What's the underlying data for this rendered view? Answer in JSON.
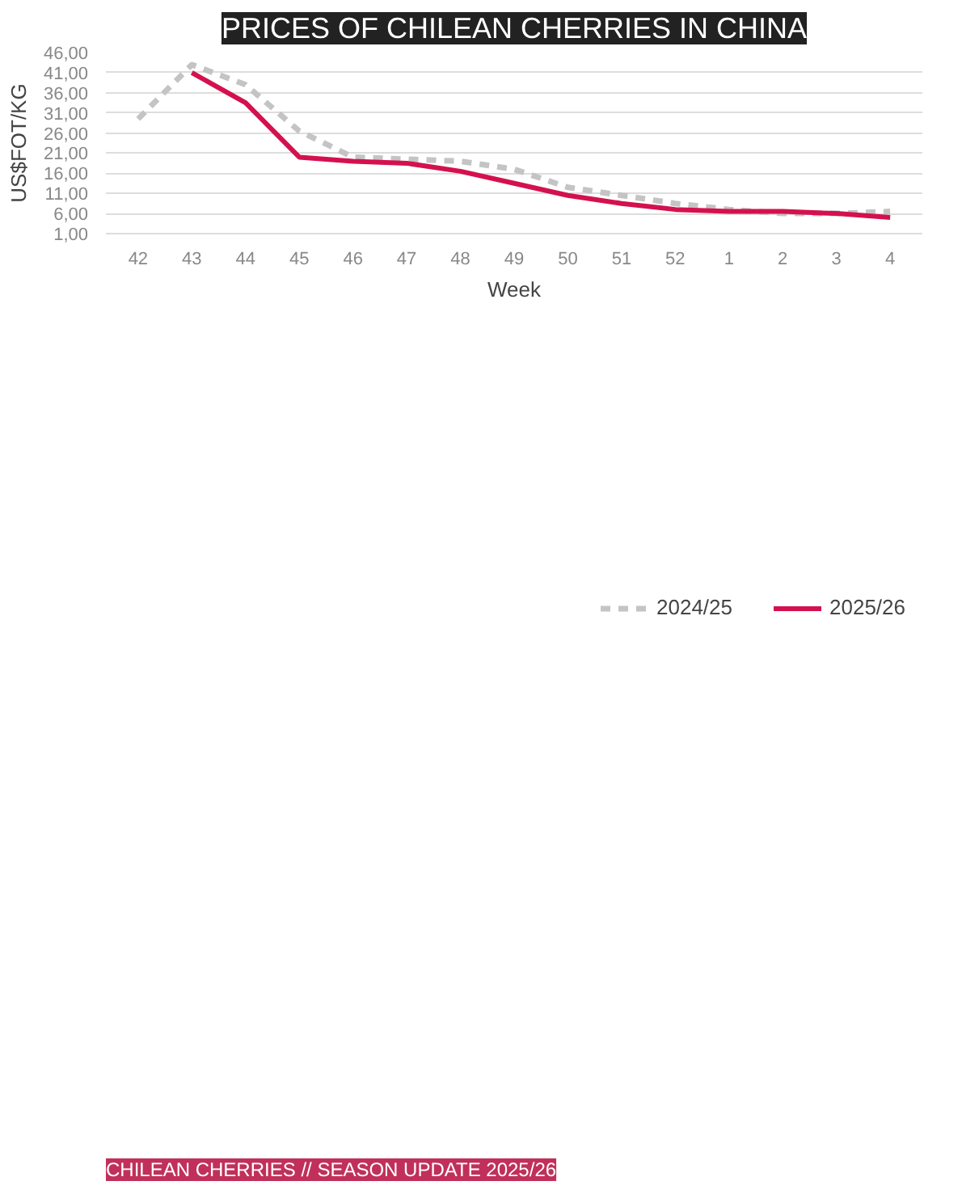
{
  "chart_data": {
    "type": "line",
    "title": "PRICES OF CHILEAN CHERRIES IN CHINA",
    "xlabel": "Week",
    "ylabel": "US$FOT/KG",
    "categories": [
      "42",
      "43",
      "44",
      "45",
      "46",
      "47",
      "48",
      "49",
      "50",
      "51",
      "52",
      "1",
      "2",
      "3",
      "4"
    ],
    "series": [
      {
        "name": "2024/25",
        "color": "#c4c4c4",
        "line_style": "dashed",
        "values": [
          29.5,
          43,
          38,
          26.5,
          20,
          19.5,
          19,
          17,
          12.5,
          10.5,
          8.5,
          7,
          6,
          6,
          6.5
        ]
      },
      {
        "name": "2025/26",
        "color": "#d4114f",
        "line_style": "solid",
        "values": [
          null,
          41,
          33.5,
          20,
          19,
          18.5,
          16.5,
          13.5,
          10.5,
          8.5,
          7,
          6.5,
          6.5,
          6,
          5
        ]
      }
    ],
    "ylim": [
      1,
      46
    ],
    "yticks": [
      {
        "value": 1,
        "label": "1,00"
      },
      {
        "value": 6,
        "label": "6,00"
      },
      {
        "value": 11,
        "label": "11,00"
      },
      {
        "value": 16,
        "label": "16,00"
      },
      {
        "value": 21,
        "label": "21,00"
      },
      {
        "value": 26,
        "label": "26,00"
      },
      {
        "value": 31,
        "label": "31,00"
      },
      {
        "value": 36,
        "label": "36,00"
      },
      {
        "value": 41,
        "label": "41,00"
      },
      {
        "value": 46,
        "label": "46,00"
      }
    ],
    "grid": "y",
    "legend": "bottom",
    "marker": "none",
    "annotations": [
      "CHILEAN CHERRIES // SEASON UPDATE 2025/26"
    ]
  }
}
